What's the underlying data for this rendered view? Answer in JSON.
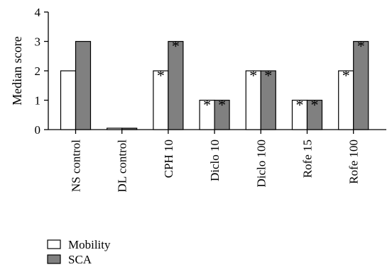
{
  "chart_data": {
    "type": "bar",
    "ylabel": "Median score",
    "ylim": [
      0,
      4
    ],
    "yticks": [
      "0",
      "1",
      "2",
      "3",
      "4"
    ],
    "categories": [
      "NS control",
      "DL control",
      "CPH 10",
      "Diclo 10",
      "Diclo 100",
      "Rofe 15",
      "Rofe 100"
    ],
    "series": [
      {
        "name": "Mobility",
        "color": "#ffffff",
        "values": [
          2,
          0,
          2,
          1,
          2,
          1,
          2
        ],
        "significant": [
          false,
          false,
          true,
          true,
          true,
          true,
          true
        ]
      },
      {
        "name": "SCA",
        "color": "#808080",
        "values": [
          3,
          0,
          3,
          1,
          2,
          1,
          3
        ],
        "significant": [
          false,
          false,
          true,
          true,
          true,
          true,
          true
        ]
      }
    ],
    "significance_marker": "*",
    "legend_position": "bottom-left",
    "grid": false
  }
}
